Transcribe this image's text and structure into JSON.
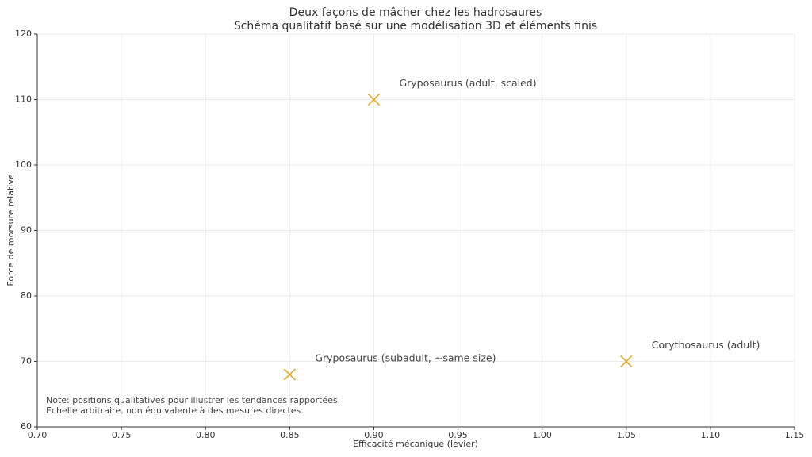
{
  "chart_data": {
    "type": "scatter",
    "title": "Deux façons de mâcher chez les hadrosaures",
    "subtitle": "Schéma qualitatif basé sur une modélisation 3D et éléments finis",
    "x_label": "Efficacité mécanique (levier)",
    "y_label": "Force de morsure relative",
    "x": [
      0.85,
      0.9,
      1.05
    ],
    "values": [
      68,
      110,
      70
    ],
    "point_labels": [
      "Gryposaurus (subadult, ~same size)",
      "Gryposaurus (adult, scaled)",
      "Corythosaurus (adult)"
    ],
    "color": "#e0a92a",
    "xlim": [
      0.7,
      1.15
    ],
    "xticks": [
      {
        "value": 0.7,
        "label": "0.70"
      },
      0.75,
      {
        "value": 0.8,
        "label": "0.80"
      },
      0.85,
      {
        "value": 0.9,
        "label": "0.90"
      },
      0.95,
      {
        "value": 1.0,
        "label": "1.00"
      },
      1.05,
      {
        "value": 1.1,
        "label": "1.10"
      },
      1.15
    ],
    "ylim": [
      60,
      120
    ],
    "yticks": [
      60,
      70,
      80,
      90,
      100,
      110,
      120
    ],
    "grid": true,
    "notes": [
      "Note: positions qualitatives pour illustrer les tendances rapportées.",
      "Echelle arbitraire, non équivalente à des mesures directes."
    ]
  }
}
